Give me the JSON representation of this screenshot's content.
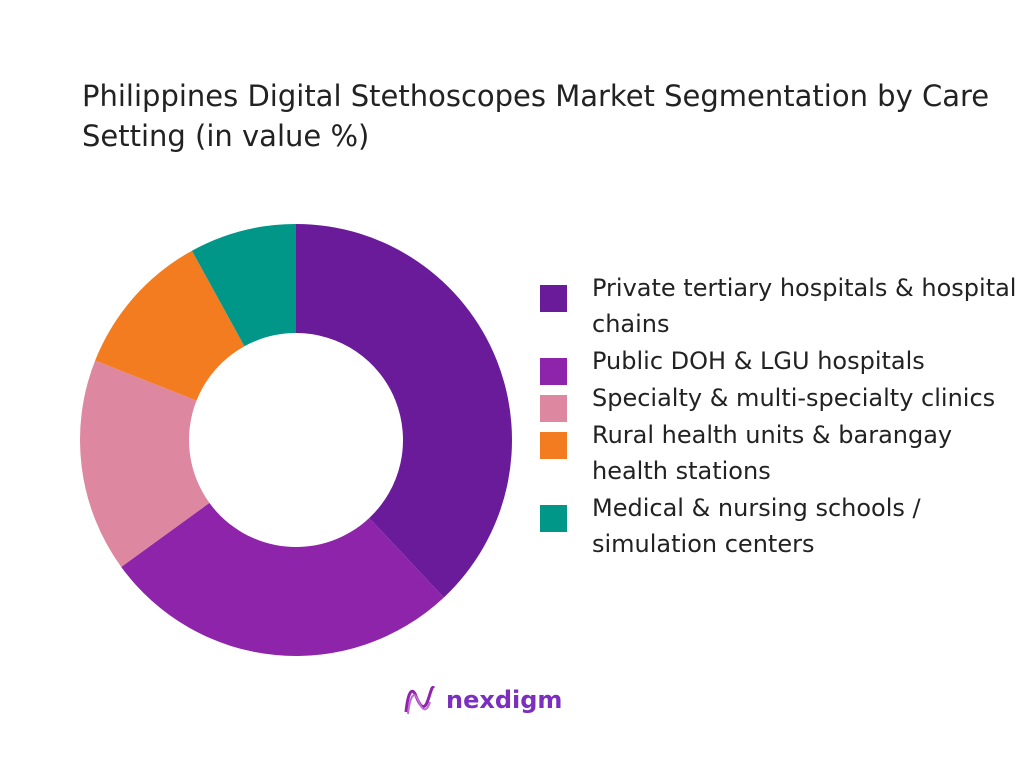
{
  "chart_data": {
    "type": "pie",
    "donut": true,
    "title": "Philippines Digital Stethoscopes Market Segmentation by Care Setting (in value %)",
    "categories": [
      "Private tertiary hospitals & hospital chains",
      "Public DOH & LGU hospitals",
      "Specialty & multi-specialty clinics",
      "Rural health units & barangay health stations",
      "Medical & nursing schools / simulation centers"
    ],
    "values": [
      38,
      27,
      16,
      11,
      8
    ],
    "colors": [
      "#6a1b9a",
      "#8e24aa",
      "#de87a0",
      "#f47c20",
      "#009688"
    ],
    "legend_placement": "right"
  },
  "logo": {
    "text": "nexdigm"
  }
}
